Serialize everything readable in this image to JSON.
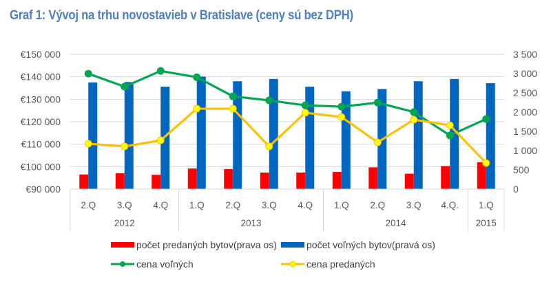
{
  "title": "Graf 1: Vývoj na trhu novostavieb  v  Bratislave (ceny sú bez DPH)",
  "chart_data": {
    "type": "bar",
    "title": "Graf 1: Vývoj na trhu novostavieb  v  Bratislave (ceny sú bez DPH)",
    "categories": [
      "2.Q",
      "3.Q",
      "4.Q",
      "1.Q",
      "2.Q",
      "3.Q",
      "4.Q",
      "1.Q",
      "2.Q",
      "3.Q",
      "4.Q.",
      "1.Q"
    ],
    "category_groups": [
      {
        "label": "2012",
        "count": 3
      },
      {
        "label": "2013",
        "count": 4
      },
      {
        "label": "2014",
        "count": 4
      },
      {
        "label": "2015",
        "count": 1
      }
    ],
    "left_axis": {
      "ylim": [
        90000,
        150000
      ],
      "step": 10000,
      "tick_labels": [
        "€90 000",
        "€100 000",
        "€110 000",
        "€120 000",
        "€130 000",
        "€140 000",
        "€150 000"
      ]
    },
    "right_axis": {
      "ylim": [
        0,
        3500
      ],
      "step": 500,
      "tick_labels": [
        "0",
        "500",
        "1 000",
        "1 500",
        "2 000",
        "2 500",
        "3 000",
        "3 500"
      ]
    },
    "grid": true,
    "legend_position": "bottom",
    "series": [
      {
        "name": "počet predaných bytov(prava os)",
        "type": "bar",
        "axis": "right",
        "color": "#ff0000",
        "values": [
          380,
          410,
          370,
          535,
          520,
          430,
          430,
          445,
          565,
          400,
          600,
          700
        ]
      },
      {
        "name": "počet voľných bytov(pravá os)",
        "type": "bar",
        "axis": "right",
        "color": "#0066c0",
        "values": [
          2770,
          2780,
          2660,
          2920,
          2800,
          2860,
          2660,
          2540,
          2600,
          2800,
          2860,
          2750
        ]
      },
      {
        "name": "cena voľných",
        "type": "line",
        "axis": "left",
        "color": "#00a651",
        "marker_color": "#00a651",
        "values": [
          141400,
          135600,
          142600,
          139800,
          131300,
          129500,
          127300,
          126700,
          128500,
          124300,
          113900,
          121200
        ]
      },
      {
        "name": "cena predaných",
        "type": "line",
        "axis": "left",
        "color": "#ffc000",
        "marker_color": "#ffff00",
        "values": [
          110200,
          109000,
          111700,
          125800,
          125800,
          109000,
          124000,
          122100,
          110800,
          120900,
          118400,
          101600
        ]
      }
    ]
  }
}
